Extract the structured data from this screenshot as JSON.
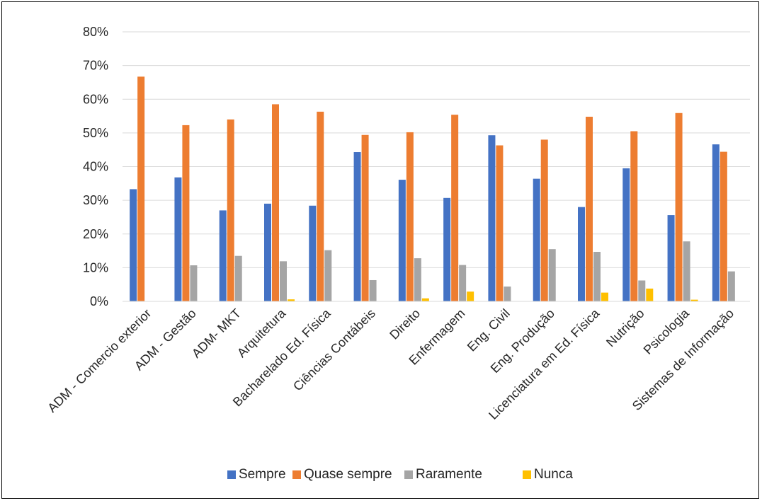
{
  "chart_data": {
    "type": "bar",
    "title": "",
    "xlabel": "",
    "ylabel": "",
    "ylim": [
      0,
      80
    ],
    "y_ticks": [
      "0%",
      "10%",
      "20%",
      "30%",
      "40%",
      "50%",
      "60%",
      "70%",
      "80%"
    ],
    "y_unit": "%",
    "grid": "horizontal",
    "legend_position": "bottom",
    "categories": [
      "ADM - Comercio exterior",
      "ADM - Gestão",
      "ADM- MKT",
      "Arquitetura",
      "Bacharelado Ed. Física",
      "Ciências Contábeis",
      "Direito",
      "Enfermagem",
      "Eng. Civil",
      "Eng. Produção",
      "Licenciatura em Ed. Física",
      "Nutrição",
      "Psicologia",
      "Sistemas de Informação"
    ],
    "series": [
      {
        "name": "Sempre",
        "color": "#4472C4",
        "values": [
          33.3,
          36.8,
          27.0,
          29.0,
          28.4,
          44.3,
          36.1,
          30.7,
          49.3,
          36.4,
          28.0,
          39.5,
          25.6,
          46.6
        ]
      },
      {
        "name": "Quase sempre",
        "color": "#ED7D31",
        "values": [
          66.7,
          52.3,
          54.0,
          58.5,
          56.3,
          49.4,
          50.2,
          55.4,
          46.3,
          48.0,
          54.8,
          50.5,
          55.9,
          44.4
        ]
      },
      {
        "name": "Raramente",
        "color": "#A5A5A5",
        "values": [
          0,
          10.7,
          13.5,
          11.9,
          15.2,
          6.3,
          12.8,
          10.8,
          4.4,
          15.5,
          14.7,
          6.2,
          17.8,
          8.9
        ]
      },
      {
        "name": "Nunca",
        "color": "#FFC000",
        "values": [
          0,
          0,
          0,
          0.6,
          0,
          0,
          0.9,
          2.9,
          0,
          0,
          2.6,
          3.8,
          0.5,
          0
        ]
      }
    ]
  }
}
